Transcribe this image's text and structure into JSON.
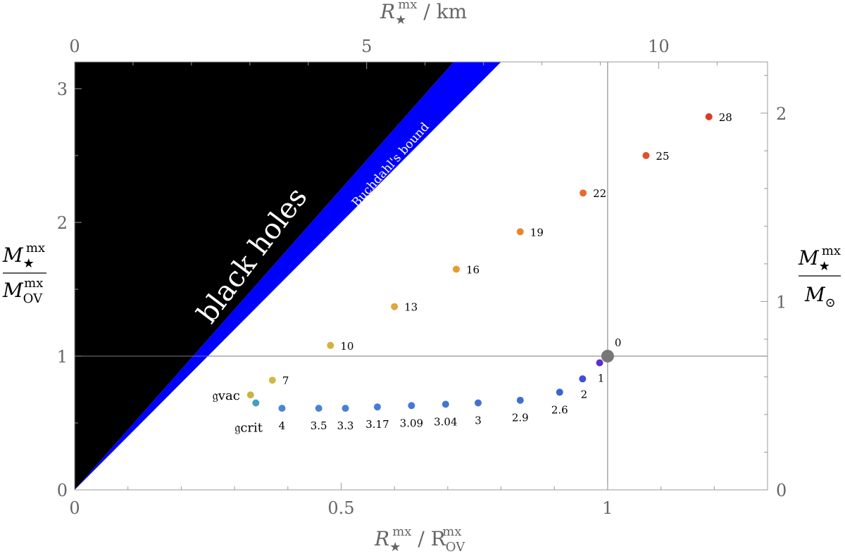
{
  "chart_data": {
    "type": "scatter",
    "title": "",
    "xlabel": {
      "main": "R",
      "sub": "★",
      "sup": "mx",
      "rest": " / R",
      "sub2": "OV",
      "sup2": "mx"
    },
    "ylabel": {
      "main": "M",
      "sub": "★",
      "sup": "mx",
      "den": "M",
      "den_sub": "OV",
      "den_sup": "mx"
    },
    "x2label": {
      "main": "R",
      "sub": "★",
      "sup": "mx",
      "rest": " / km"
    },
    "y2label": {
      "main": "M",
      "sub": "★",
      "sup": "mx",
      "den": "M",
      "den_sub": "⊙"
    },
    "xlim": [
      0,
      1.3
    ],
    "ylim": [
      0,
      3.2
    ],
    "x_ticks": [
      "0",
      "0.5",
      "1"
    ],
    "y_ticks": [
      "0",
      "1",
      "2",
      "3"
    ],
    "x2_ticks": [
      "0",
      "5",
      "10"
    ],
    "y2_ticks": [
      "0",
      "1",
      "2"
    ],
    "x2_ticks_data": [
      0,
      0.5479,
      1.0958
    ],
    "y2_ticks_data": [
      0,
      1.4085,
      2.817
    ],
    "reference_lines": {
      "x": 1,
      "y": 1
    },
    "regions": {
      "black_holes": {
        "label": "black holes",
        "slope": 4.5,
        "color": "#000000"
      },
      "buchdahl": {
        "label": "Buchdahl's bound",
        "slope": 4.0,
        "color": "#0000ff"
      }
    },
    "reference_point": {
      "label": "0",
      "x": 1.0,
      "y": 1.0,
      "color": "#777777"
    },
    "special_points": [
      {
        "label": "𝔤vac",
        "x": 0.33,
        "y": 0.71,
        "color": "#c9b440"
      },
      {
        "label": "𝔤crit",
        "x": 0.34,
        "y": 0.65,
        "color": "#40a0c0"
      }
    ],
    "points": [
      {
        "label": "1",
        "x": 0.985,
        "y": 0.95,
        "color": "#5b2fd0"
      },
      {
        "label": "2",
        "x": 0.953,
        "y": 0.83,
        "color": "#3d4fd6"
      },
      {
        "label": "2.6",
        "x": 0.91,
        "y": 0.73,
        "color": "#3d62d4"
      },
      {
        "label": "2.9",
        "x": 0.836,
        "y": 0.67,
        "color": "#3f6fd2"
      },
      {
        "label": "3",
        "x": 0.757,
        "y": 0.65,
        "color": "#4073d0"
      },
      {
        "label": "3.04",
        "x": 0.696,
        "y": 0.64,
        "color": "#4476d0"
      },
      {
        "label": "3.09",
        "x": 0.632,
        "y": 0.63,
        "color": "#4679d2"
      },
      {
        "label": "3.17",
        "x": 0.568,
        "y": 0.62,
        "color": "#477cd3"
      },
      {
        "label": "3.3",
        "x": 0.508,
        "y": 0.61,
        "color": "#497fd4"
      },
      {
        "label": "3.5",
        "x": 0.458,
        "y": 0.61,
        "color": "#4b82d4"
      },
      {
        "label": "4",
        "x": 0.389,
        "y": 0.61,
        "color": "#4c86d4"
      },
      {
        "label": "7",
        "x": 0.371,
        "y": 0.82,
        "color": "#d0ba45"
      },
      {
        "label": "10",
        "x": 0.48,
        "y": 1.08,
        "color": "#d4b23f"
      },
      {
        "label": "13",
        "x": 0.6,
        "y": 1.37,
        "color": "#e0a838"
      },
      {
        "label": "16",
        "x": 0.716,
        "y": 1.65,
        "color": "#e89a35"
      },
      {
        "label": "19",
        "x": 0.836,
        "y": 1.93,
        "color": "#e8862f"
      },
      {
        "label": "22",
        "x": 0.954,
        "y": 2.22,
        "color": "#e46c2c"
      },
      {
        "label": "25",
        "x": 1.072,
        "y": 2.5,
        "color": "#e0502a"
      },
      {
        "label": "28",
        "x": 1.19,
        "y": 2.79,
        "color": "#dc3a26"
      }
    ]
  },
  "colors": {
    "frame": "#888888",
    "tick_text": "#666666",
    "grid_line": "#666666"
  }
}
